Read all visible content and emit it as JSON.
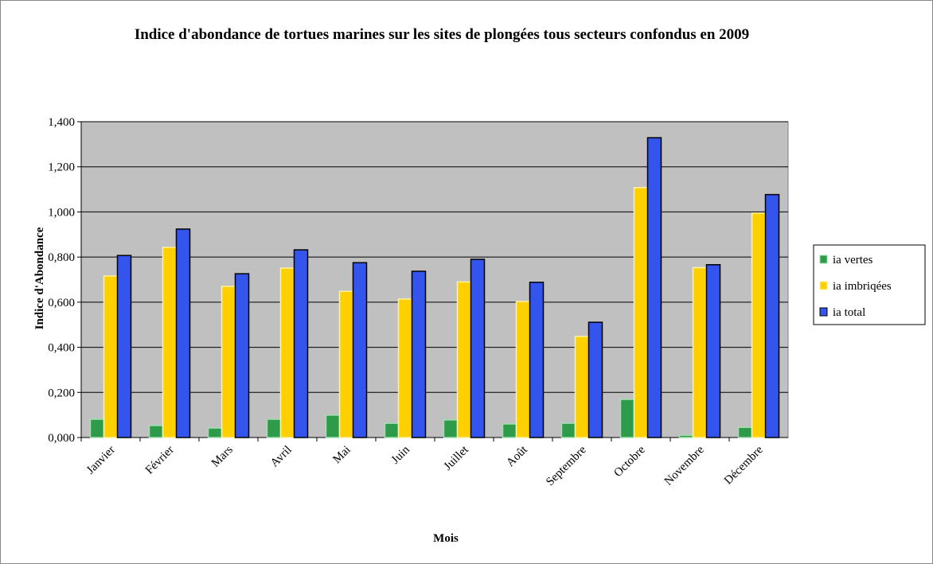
{
  "chart_data": {
    "type": "bar",
    "title": "Indice d'abondance de tortues marines sur les sites de plongées tous secteurs confondus en 2009",
    "x_label": "Mois",
    "y_label": "Indice d'Abondance",
    "categories": [
      "Janvier",
      "Février",
      "Mars",
      "Avril",
      "Mai",
      "Juin",
      "Juillet",
      "Août",
      "Septembre",
      "Octobre",
      "Novembre",
      "Décembre"
    ],
    "series": [
      {
        "name": "ia vertes",
        "color": "#2e9b4a",
        "values": [
          0.081,
          0.053,
          0.042,
          0.081,
          0.099,
          0.063,
          0.078,
          0.06,
          0.063,
          0.169,
          0.01,
          0.045
        ]
      },
      {
        "name": "ia imbriqées",
        "color": "#ffd000",
        "values": [
          0.716,
          0.843,
          0.67,
          0.751,
          0.648,
          0.614,
          0.69,
          0.603,
          0.448,
          1.108,
          0.753,
          0.995
        ]
      },
      {
        "name": "ia total",
        "color": "#3355ee",
        "values": [
          0.807,
          0.924,
          0.726,
          0.832,
          0.775,
          0.737,
          0.79,
          0.688,
          0.511,
          1.329,
          0.766,
          1.077
        ]
      }
    ],
    "ylim": [
      0,
      1.4
    ],
    "yticks": [
      {
        "value": 0,
        "label": "0,000"
      },
      {
        "value": 0.2,
        "label": "0,200"
      },
      {
        "value": 0.4,
        "label": "0,400"
      },
      {
        "value": 0.6,
        "label": "0,600"
      },
      {
        "value": 0.8,
        "label": "0,800"
      },
      {
        "value": 1.0,
        "label": "1,000"
      },
      {
        "value": 1.2,
        "label": "1,200"
      },
      {
        "value": 1.4,
        "label": "1,400"
      }
    ],
    "grid": true,
    "legend": "right"
  }
}
